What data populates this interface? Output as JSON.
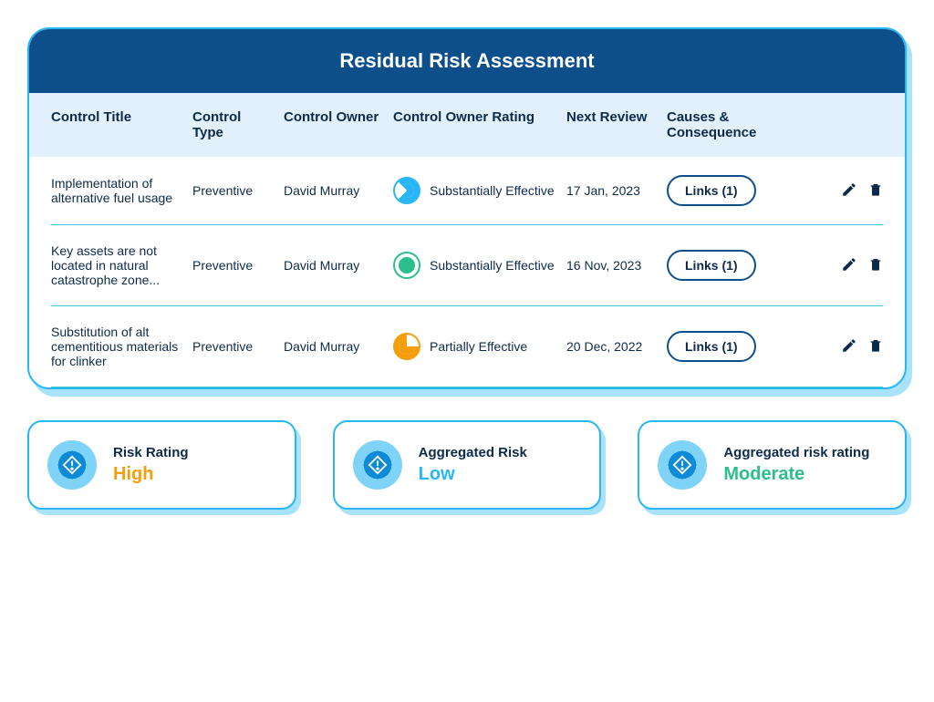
{
  "panel": {
    "title": "Residual Risk Assessment"
  },
  "columns": {
    "title": "Control Title",
    "type": "Control Type",
    "owner": "Control Owner",
    "rating": "Control Owner Rating",
    "review": "Next Review",
    "causes": "Causes & Consequence"
  },
  "rows": [
    {
      "title": "Implementation of alternative fuel usage",
      "type": "Preventive",
      "owner": "David Murray",
      "rating_label": "Substantially Effective",
      "rating_style": "blue",
      "review": "17 Jan, 2023",
      "links_label": "Links (1)"
    },
    {
      "title": "Key assets are not located in natural catastrophe zone...",
      "type": "Preventive",
      "owner": "David Murray",
      "rating_label": "Substantially Effective",
      "rating_style": "green",
      "review": "16 Nov, 2023",
      "links_label": "Links (1)"
    },
    {
      "title": "Substitution of alt cementitious materials for clinker",
      "type": "Preventive",
      "owner": "David Murray",
      "rating_label": "Partially Effective",
      "rating_style": "orange",
      "review": "20 Dec, 2022",
      "links_label": "Links (1)"
    }
  ],
  "cards": [
    {
      "label": "Risk Rating",
      "value": "High",
      "value_class": "val-high"
    },
    {
      "label": "Aggregated Risk",
      "value": "Low",
      "value_class": "val-low"
    },
    {
      "label": "Aggregated risk rating",
      "value": "Moderate",
      "value_class": "val-moderate"
    }
  ],
  "colors": {
    "header_bg": "#0d4f8b",
    "border": "#29b6f6",
    "sub_header_bg": "#e1f0fa",
    "row_divider": "#3ec9d6",
    "text": "#0d2a4a",
    "high": "#f59e0b",
    "low": "#29b6f6",
    "moderate": "#2bbf8a"
  }
}
